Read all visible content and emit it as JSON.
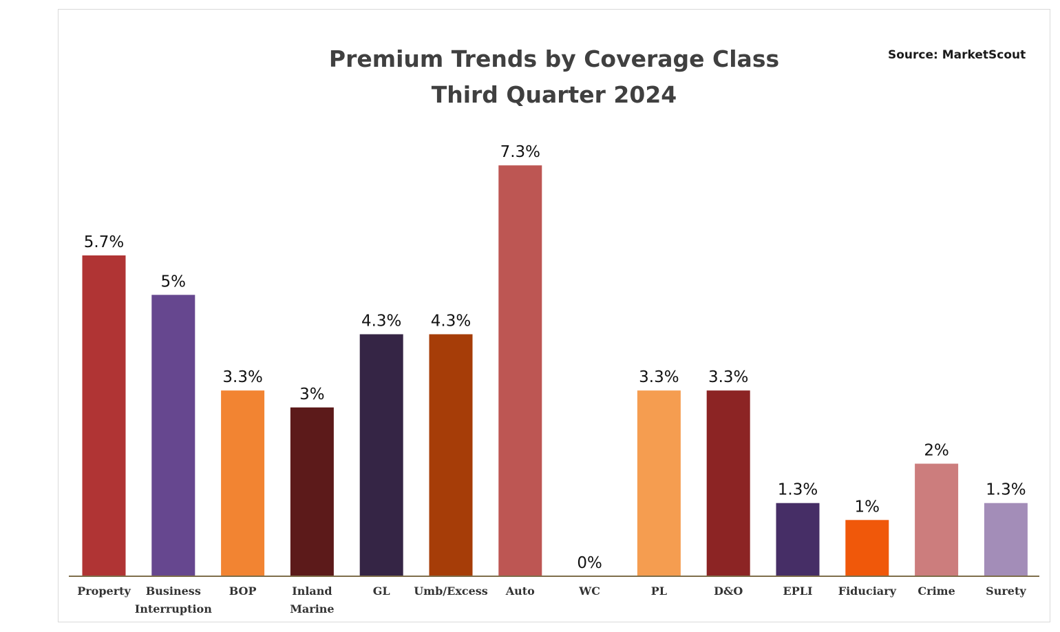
{
  "chart_data": {
    "type": "bar",
    "title": "Premium Trends by Coverage Class",
    "subtitle": "Third Quarter 2024",
    "source": "Source: MarketScout",
    "xlabel": "",
    "ylabel": "",
    "ylim": [
      0,
      8
    ],
    "grid": false,
    "categories": [
      [
        "Property"
      ],
      [
        "Business",
        "Interruption"
      ],
      [
        "BOP"
      ],
      [
        "Inland",
        "Marine"
      ],
      [
        "GL"
      ],
      [
        "Umb/Excess"
      ],
      [
        "Auto"
      ],
      [
        "WC"
      ],
      [
        "PL"
      ],
      [
        "D&O"
      ],
      [
        "EPLI"
      ],
      [
        "Fiduciary"
      ],
      [
        "Crime"
      ],
      [
        "Surety"
      ]
    ],
    "values": [
      5.7,
      5,
      3.3,
      3,
      4.3,
      4.3,
      7.3,
      0,
      3.3,
      3.3,
      1.3,
      1,
      2,
      1.3
    ],
    "value_labels": [
      "5.7%",
      "5%",
      "3.3%",
      "3%",
      "4.3%",
      "4.3%",
      "7.3%",
      "0%",
      "3.3%",
      "3.3%",
      "1.3%",
      "1%",
      "2%",
      "1.3%"
    ],
    "colors": [
      "#b03434",
      "#66478f",
      "#f28432",
      "#5c1a1a",
      "#352545",
      "#a63d08",
      "#bd5653",
      "#bd5653",
      "#f59d50",
      "#8c2424",
      "#462e66",
      "#f0580a",
      "#cc7d7d",
      "#a38db8"
    ],
    "axis_color": "#7d6e4a"
  }
}
